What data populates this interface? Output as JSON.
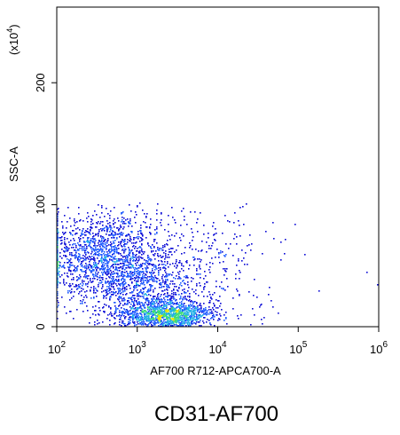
{
  "chart_data": {
    "type": "scatter",
    "subtype": "flow-cytometry-density-dot-plot",
    "title": "CD31-AF700",
    "xlabel": "AF700 R712-APCA700-A",
    "ylabel": "SSC-A",
    "y_scale_note": "(x10",
    "y_scale_exponent": "4",
    "x_scale": "log",
    "xlim": [
      100,
      1000000
    ],
    "ylim": [
      0,
      262
    ],
    "x_ticks": [
      {
        "value": 100,
        "base": "10",
        "exp": "2"
      },
      {
        "value": 1000,
        "base": "10",
        "exp": "3"
      },
      {
        "value": 10000,
        "base": "10",
        "exp": "4"
      },
      {
        "value": 100000,
        "base": "10",
        "exp": "5"
      },
      {
        "value": 1000000,
        "base": "10",
        "exp": "6"
      }
    ],
    "y_ticks": [
      {
        "value": 0,
        "label": "0"
      },
      {
        "value": 100,
        "label": "100"
      },
      {
        "value": 200,
        "label": "200"
      }
    ],
    "grid": false,
    "colormap": [
      "#0a0ad6",
      "#1e5bff",
      "#23b0e6",
      "#3ddc7a",
      "#e6e600"
    ],
    "populations": [
      {
        "name": "population-1",
        "x_center": 400,
        "x_spread_decades": 0.42,
        "y_center": 58,
        "y_spread": 18,
        "count": 1700
      },
      {
        "name": "population-2",
        "x_center": 2300,
        "x_spread_decades": 0.28,
        "y_center": 10,
        "y_spread": 6,
        "count": 1400
      },
      {
        "name": "bridge",
        "x_center": 1300,
        "x_spread_decades": 0.35,
        "y_center": 30,
        "y_spread": 14,
        "count": 700
      },
      {
        "name": "sparse-tail",
        "x_center": 8000,
        "x_spread_decades": 0.45,
        "y_center": 55,
        "y_spread": 28,
        "count": 260
      }
    ],
    "outliers": [
      {
        "x": 700000,
        "y": 45
      },
      {
        "x": 950000,
        "y": 35
      },
      {
        "x": 180000,
        "y": 30
      },
      {
        "x": 60000,
        "y": 70
      },
      {
        "x": 120000,
        "y": 60
      }
    ]
  }
}
